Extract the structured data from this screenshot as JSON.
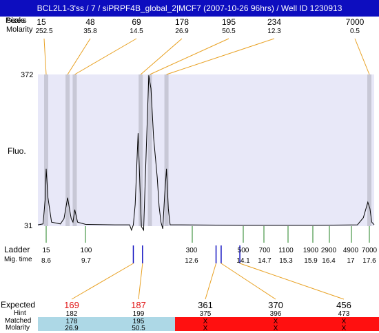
{
  "header": {
    "title": "BCL2L1-3'ss / 7 / siPRPF4B_global_2|MCF7 (2007-10-26 96hrs) / Well ID 1230913"
  },
  "top_rows": {
    "sizes_label": "Sizes",
    "peaks_label": "Peaks",
    "molarity_label": "Molarity"
  },
  "axis": {
    "y_max_label": "372",
    "y_min_label": "31",
    "y_title": "Fluo."
  },
  "ladder_rows": {
    "ladder_label": "Ladder",
    "migtime_label": "Mig. time"
  },
  "bottom_rows": {
    "expected_label": "Expected",
    "hint_label": "Hint",
    "matched_label": "Matched",
    "molarity_label": "Molarity"
  },
  "colors": {
    "title_bg": "#0d0dbf",
    "plot_bg": "#e8e8f8",
    "peak_band": "#c8c8d6",
    "guide_line": "#e8a020",
    "ladder_tick": "#208020",
    "marker_blue": "#1010c0",
    "expected_text": "#e01010",
    "matched_ok": "#add8e6",
    "matched_fail": "#ff1010"
  },
  "chart_data": {
    "type": "line",
    "title": "BCL2L1-3'ss / 7 / siPRPF4B_global_2|MCF7 (2007-10-26 96hrs) / Well ID 1230913",
    "ylabel": "Fluo.",
    "ylim": [
      31,
      372
    ],
    "peaks": [
      {
        "size": "15",
        "molarity": "252.5",
        "mig_time": 8.6
      },
      {
        "size": "48",
        "molarity": "35.8",
        "mig_time": 9.2
      },
      {
        "size": "69",
        "molarity": "14.5",
        "mig_time": 9.4
      },
      {
        "size": "178",
        "molarity": "26.9",
        "mig_time": 11.2
      },
      {
        "size": "195",
        "molarity": "50.5",
        "mig_time": 11.45
      },
      {
        "size": "234",
        "molarity": "12.3",
        "mig_time": 11.9
      },
      {
        "size": "7000",
        "molarity": "0.5",
        "mig_time": 17.6
      }
    ],
    "ladder": [
      {
        "size": "15",
        "mig_time": "8.6"
      },
      {
        "size": "100",
        "mig_time": "9.7"
      },
      {
        "size": "300",
        "mig_time": "12.6"
      },
      {
        "size": "500",
        "mig_time": "14.1"
      },
      {
        "size": "700",
        "mig_time": "14.7"
      },
      {
        "size": "1100",
        "mig_time": "15.3"
      },
      {
        "size": "1900",
        "mig_time": "15.9"
      },
      {
        "size": "2900",
        "mig_time": "16.4"
      },
      {
        "size": "4900",
        "mig_time": "17"
      },
      {
        "size": "7000",
        "mig_time": "17.6"
      }
    ],
    "expected": [
      {
        "expected": "169",
        "hint": "182",
        "matched": "178",
        "molarity": "26.9",
        "ok": true,
        "mig_time": 11.0
      },
      {
        "expected": "187",
        "hint": "199",
        "matched": "195",
        "molarity": "50.5",
        "ok": true,
        "mig_time": 11.25
      },
      {
        "expected": "361",
        "hint": "375",
        "matched": "X",
        "molarity": "X",
        "ok": false,
        "mig_time": 13.3
      },
      {
        "expected": "370",
        "hint": "396",
        "matched": "X",
        "molarity": "X",
        "ok": false,
        "mig_time": 13.45
      },
      {
        "expected": "456",
        "hint": "473",
        "matched": "X",
        "molarity": "X",
        "ok": false,
        "mig_time": 14.0
      }
    ],
    "trace": [
      [
        8.2,
        34
      ],
      [
        8.45,
        36
      ],
      [
        8.55,
        90
      ],
      [
        8.6,
        160
      ],
      [
        8.65,
        95
      ],
      [
        8.75,
        40
      ],
      [
        9.0,
        36
      ],
      [
        9.1,
        48
      ],
      [
        9.2,
        95
      ],
      [
        9.3,
        48
      ],
      [
        9.35,
        40
      ],
      [
        9.4,
        68
      ],
      [
        9.48,
        40
      ],
      [
        9.7,
        35
      ],
      [
        10.5,
        34
      ],
      [
        10.9,
        34
      ],
      [
        10.95,
        22
      ],
      [
        11.0,
        34
      ],
      [
        11.05,
        80
      ],
      [
        11.13,
        240
      ],
      [
        11.18,
        120
      ],
      [
        11.22,
        30
      ],
      [
        11.28,
        22
      ],
      [
        11.35,
        200
      ],
      [
        11.42,
        370
      ],
      [
        11.48,
        340
      ],
      [
        11.55,
        230
      ],
      [
        11.65,
        140
      ],
      [
        11.7,
        75
      ],
      [
        11.75,
        40
      ],
      [
        11.8,
        25
      ],
      [
        11.85,
        100
      ],
      [
        11.9,
        160
      ],
      [
        11.95,
        70
      ],
      [
        12.0,
        34
      ],
      [
        12.3,
        34
      ],
      [
        14.0,
        33
      ],
      [
        16.0,
        33
      ],
      [
        17.2,
        34
      ],
      [
        17.4,
        50
      ],
      [
        17.55,
        85
      ],
      [
        17.65,
        70
      ],
      [
        17.8,
        40
      ],
      [
        18.0,
        34
      ]
    ]
  }
}
